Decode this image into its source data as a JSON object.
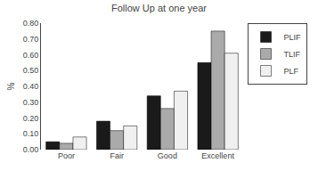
{
  "chart_data": {
    "type": "bar",
    "title": "Follow Up at one year",
    "y_label": "%",
    "categories": [
      "Poor",
      "Fair",
      "Good",
      "Excellent"
    ],
    "series": [
      {
        "name": "PLIF",
        "color": "#1a1a1a",
        "values": [
          0.05,
          0.18,
          0.34,
          0.55
        ]
      },
      {
        "name": "TLIF",
        "color": "#aaaaaa",
        "values": [
          0.04,
          0.12,
          0.26,
          0.75
        ]
      },
      {
        "name": "PLF",
        "color": "#f0f0f0",
        "values": [
          0.08,
          0.15,
          0.37,
          0.61
        ]
      }
    ],
    "ylim": [
      0.0,
      0.8
    ],
    "yticks": [
      {
        "value": 0.0,
        "label": "0.00"
      },
      {
        "value": 0.1,
        "label": "0.10"
      },
      {
        "value": 0.2,
        "label": "0.20"
      },
      {
        "value": 0.3,
        "label": "0.30"
      },
      {
        "value": 0.4,
        "label": "0.40"
      },
      {
        "value": 0.5,
        "label": "0.50"
      },
      {
        "value": 0.6,
        "label": "0.60"
      },
      {
        "value": 0.7,
        "label": "0.70"
      },
      {
        "value": 0.8,
        "label": "0.80"
      }
    ],
    "grid": false,
    "legend": "right"
  }
}
